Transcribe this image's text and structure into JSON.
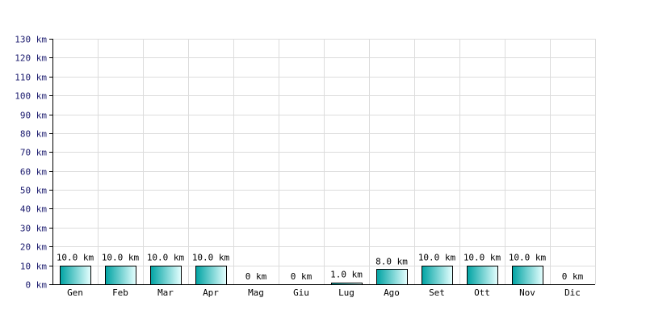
{
  "chart_data": {
    "type": "bar",
    "categories": [
      "Gen",
      "Feb",
      "Mar",
      "Apr",
      "Mag",
      "Giu",
      "Lug",
      "Ago",
      "Set",
      "Ott",
      "Nov",
      "Dic"
    ],
    "values": [
      10.0,
      10.0,
      10.0,
      10.0,
      0,
      0,
      1.0,
      8.0,
      10.0,
      10.0,
      10.0,
      0
    ],
    "data_labels": [
      "10.0 km",
      "10.0 km",
      "10.0 km",
      "10.0 km",
      "0 km",
      "0 km",
      "1.0 km",
      "8.0 km",
      "10.0 km",
      "10.0 km",
      "10.0 km",
      "0 km"
    ],
    "y_ticks": [
      0,
      10,
      20,
      30,
      40,
      50,
      60,
      70,
      80,
      90,
      100,
      110,
      120,
      130
    ],
    "y_tick_labels": [
      "0 km",
      "10 km",
      "20 km",
      "30 km",
      "40 km",
      "50 km",
      "60 km",
      "70 km",
      "80 km",
      "90 km",
      "100 km",
      "110 km",
      "120 km",
      "130 km"
    ],
    "ylim": [
      0,
      130
    ],
    "grid": true,
    "title": "",
    "xlabel": "",
    "ylabel": ""
  },
  "colors": {
    "bar_dark": "#00a3a3",
    "bar_light": "#e6ffff",
    "grid": "#dcdcdc",
    "tick_text": "#1a1a6e"
  }
}
